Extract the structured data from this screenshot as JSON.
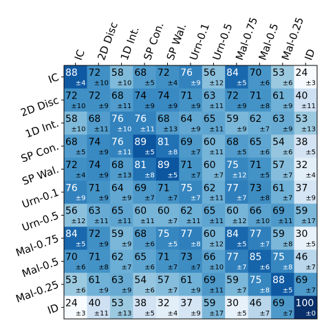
{
  "chart_data": {
    "type": "heatmap",
    "x_categories": [
      "IC",
      "2D Disc",
      "1D Int.",
      "SP Con.",
      "SP Wal.",
      "Urn-0.1",
      "Urn-0.5",
      "Mal-0.75",
      "Mal-0.5",
      "Mal-0.25",
      "ID"
    ],
    "y_categories": [
      "IC",
      "2D Disc",
      "1D Int.",
      "SP Con.",
      "SP Wal.",
      "Urn-0.1",
      "Urn-0.5",
      "Mal-0.75",
      "Mal-0.5",
      "Mal-0.25",
      "ID"
    ],
    "values": [
      [
        88,
        72,
        58,
        68,
        72,
        76,
        56,
        84,
        70,
        53,
        24
      ],
      [
        72,
        72,
        68,
        74,
        74,
        71,
        63,
        72,
        71,
        61,
        40
      ],
      [
        58,
        68,
        76,
        76,
        68,
        64,
        65,
        59,
        62,
        63,
        53
      ],
      [
        68,
        74,
        76,
        89,
        81,
        69,
        60,
        68,
        65,
        54,
        38
      ],
      [
        72,
        74,
        68,
        81,
        89,
        71,
        60,
        75,
        71,
        57,
        32
      ],
      [
        76,
        71,
        64,
        69,
        71,
        75,
        62,
        77,
        73,
        61,
        37
      ],
      [
        56,
        63,
        65,
        60,
        60,
        62,
        65,
        60,
        66,
        69,
        59
      ],
      [
        84,
        72,
        59,
        68,
        75,
        77,
        60,
        84,
        77,
        59,
        30
      ],
      [
        70,
        71,
        62,
        65,
        71,
        73,
        66,
        77,
        85,
        75,
        46
      ],
      [
        53,
        61,
        63,
        54,
        57,
        61,
        69,
        59,
        75,
        88,
        69
      ],
      [
        24,
        40,
        53,
        38,
        32,
        37,
        59,
        30,
        46,
        69,
        100
      ]
    ],
    "errors": [
      [
        4,
        10,
        10,
        5,
        4,
        9,
        12,
        5,
        6,
        6,
        3
      ],
      [
        10,
        9,
        11,
        9,
        9,
        9,
        11,
        9,
        8,
        9,
        11
      ],
      [
        10,
        11,
        10,
        11,
        13,
        9,
        11,
        9,
        7,
        9,
        13
      ],
      [
        5,
        9,
        11,
        5,
        8,
        7,
        11,
        5,
        6,
        6,
        5
      ],
      [
        4,
        9,
        13,
        8,
        5,
        7,
        7,
        12,
        5,
        7,
        4
      ],
      [
        9,
        9,
        9,
        7,
        7,
        7,
        11,
        7,
        8,
        7,
        9
      ],
      [
        12,
        11,
        11,
        11,
        7,
        11,
        11,
        12,
        10,
        11,
        17
      ],
      [
        5,
        9,
        9,
        6,
        5,
        8,
        12,
        5,
        7,
        8,
        5
      ],
      [
        6,
        8,
        7,
        6,
        7,
        7,
        10,
        7,
        6,
        8,
        7
      ],
      [
        6,
        9,
        9,
        6,
        7,
        9,
        11,
        7,
        8,
        5,
        7
      ],
      [
        3,
        11,
        13,
        5,
        4,
        9,
        17,
        5,
        7,
        7,
        0
      ]
    ],
    "error_labels": [
      [
        "±4",
        "±10",
        "±10",
        "±5",
        "±4",
        "±9",
        "±12",
        "±5",
        "±6",
        "±6",
        "±3"
      ],
      [
        "±10",
        "±9",
        "±11",
        "±9",
        "±9",
        "±9",
        "±11",
        "±9",
        "±8",
        "±9",
        "±11"
      ],
      [
        "±10",
        "±11",
        "±10",
        "±11",
        "±13",
        "±9",
        "±11",
        "±9",
        "±7",
        "±9",
        "±13"
      ],
      [
        "±5",
        "±9",
        "±11",
        "±5",
        "±8",
        "±7",
        "±11",
        "±5",
        "±6",
        "±6",
        "±5"
      ],
      [
        "±4",
        "±9",
        "±13",
        "±8",
        "±5",
        "±7",
        "±7",
        "±12",
        "±5",
        "±7",
        "±4"
      ],
      [
        "±9",
        "±9",
        "±9",
        "±7",
        "±7",
        "±7",
        "±11",
        "±7",
        "±8",
        "±7",
        "±9"
      ],
      [
        "±12",
        "±11",
        "±11",
        "±11",
        "±7",
        "±11",
        "±11",
        "±12",
        "±10",
        "±11",
        "±17"
      ],
      [
        "±5",
        "±9",
        "±9",
        "±6",
        "±5",
        "±8",
        "±12",
        "±5",
        "±7",
        "±8",
        "±5"
      ],
      [
        "±6",
        "±8",
        "±7",
        "±6",
        "±7",
        "±7",
        "±10",
        "±7",
        "±6",
        "±8",
        "±7"
      ],
      [
        "±6",
        "±9",
        "±9",
        "±6",
        "±7",
        "±9",
        "±11",
        "±7",
        "±8",
        "±5",
        "±7"
      ],
      [
        "±3",
        "±11",
        "±13",
        "±5",
        "±4",
        "±9",
        "±17",
        "±5",
        "±7",
        "±7",
        "±0"
      ]
    ],
    "colormap": [
      "#f7fbff",
      "#deebf7",
      "#c6dbef",
      "#9ecae1",
      "#6baed6",
      "#4292c6",
      "#2171b5",
      "#08519c",
      "#08306b"
    ]
  }
}
